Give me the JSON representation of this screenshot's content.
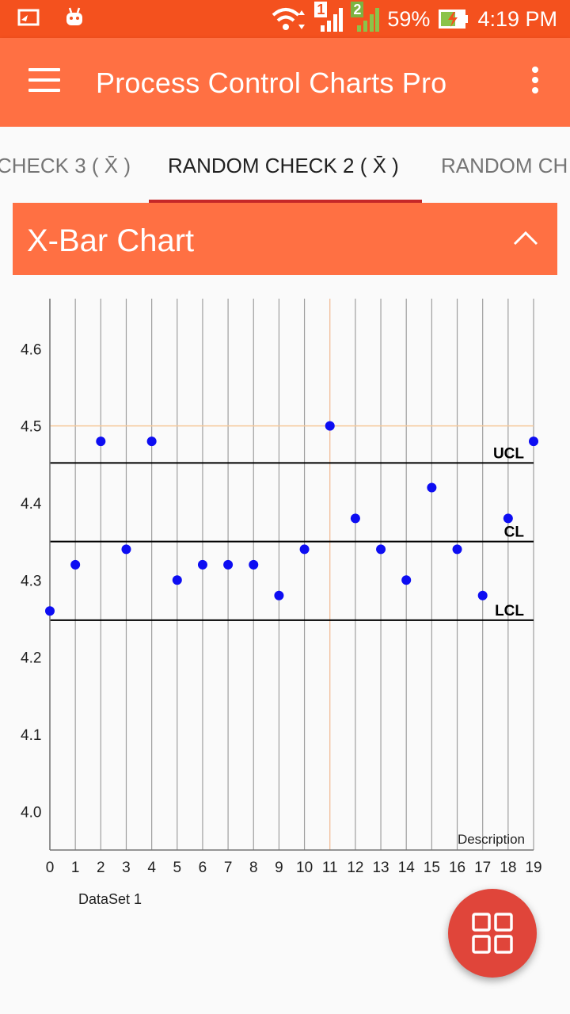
{
  "status_bar": {
    "sim1": "1",
    "sim2": "2",
    "battery": "59%",
    "time": "4:19 PM",
    "icons": [
      "cast-icon",
      "android-icon",
      "wifi-icon",
      "signal-icon",
      "battery-charging-icon"
    ]
  },
  "app_bar": {
    "title": "Process Control Charts Pro",
    "menu_icon": "hamburger-menu-icon",
    "more_icon": "more-vert-icon"
  },
  "tabs": [
    {
      "label": "CHECK 3 ( X̄ )",
      "active": false
    },
    {
      "label": "RANDOM CHECK 2 ( X̄ )",
      "active": true
    },
    {
      "label": "RANDOM CH",
      "active": false
    }
  ],
  "card": {
    "title": "X-Bar Chart",
    "collapse_icon": "chevron-up-icon"
  },
  "chart_data": {
    "type": "scatter",
    "x": [
      0,
      1,
      2,
      3,
      4,
      5,
      6,
      7,
      8,
      9,
      10,
      11,
      12,
      13,
      14,
      15,
      16,
      17,
      18,
      19
    ],
    "values": [
      4.26,
      4.32,
      4.48,
      4.34,
      4.48,
      4.3,
      4.32,
      4.32,
      4.32,
      4.28,
      4.34,
      4.5,
      4.38,
      4.34,
      4.3,
      4.42,
      4.34,
      4.28,
      4.38,
      4.48
    ],
    "y_ticks": [
      "4.0",
      "4.1",
      "4.2",
      "4.3",
      "4.4",
      "4.5",
      "4.6"
    ],
    "ylim": [
      3.95,
      4.665
    ],
    "xlim": [
      0,
      19
    ],
    "control_lines": [
      {
        "label": "UCL",
        "value": 4.452
      },
      {
        "label": "CL",
        "value": 4.35
      },
      {
        "label": "LCL",
        "value": 4.248
      }
    ],
    "highlight": {
      "x": 11,
      "y": 4.5,
      "color": "#f5c89a"
    },
    "description": "Description",
    "legend": "DataSet 1",
    "point_color": "#0d0df2",
    "grid": true
  },
  "fab": {
    "icon": "grid-view-icon"
  },
  "colors": {
    "primary": "#ff7043",
    "status": "#f4511e",
    "accent": "#e0453a",
    "indicator": "#c62828"
  }
}
